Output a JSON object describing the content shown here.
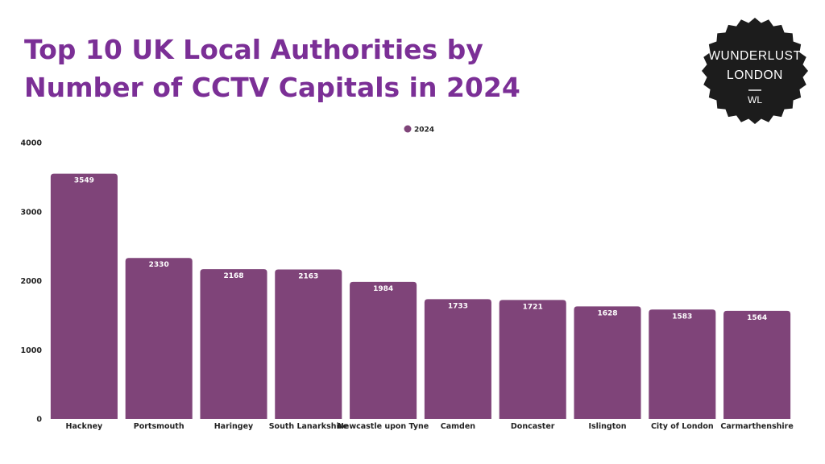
{
  "title_lines": [
    "Top 10 UK Local Authorities by",
    "Number of CCTV Capitals in 2024"
  ],
  "logo": {
    "line1": "WUNDERLUST",
    "line2": "LONDON",
    "mark": "WL",
    "background": "#1c1c1c",
    "text_color": "#ffffff"
  },
  "colors": {
    "title": "#7B2F96",
    "bar": "#7F4479"
  },
  "chart_data": {
    "type": "bar",
    "title": "Top 10 UK Local Authorities by Number of CCTV Capitals in 2024",
    "xlabel": "",
    "ylabel": "",
    "categories": [
      "Hackney",
      "Portsmouth",
      "Haringey",
      "South Lanarkshire",
      "Newcastle upon Tyne",
      "Camden",
      "Doncaster",
      "Islington",
      "City of London",
      "Carmarthenshire"
    ],
    "series": [
      {
        "name": "2024",
        "values": [
          3549,
          2330,
          2168,
          2163,
          1984,
          1733,
          1721,
          1628,
          1583,
          1564
        ]
      }
    ],
    "ylim": [
      0,
      4000
    ],
    "yticks": [
      "0",
      "1000",
      "2000",
      "3000",
      "4000"
    ],
    "data_labels": true,
    "grid": false,
    "legend": "top-center"
  }
}
